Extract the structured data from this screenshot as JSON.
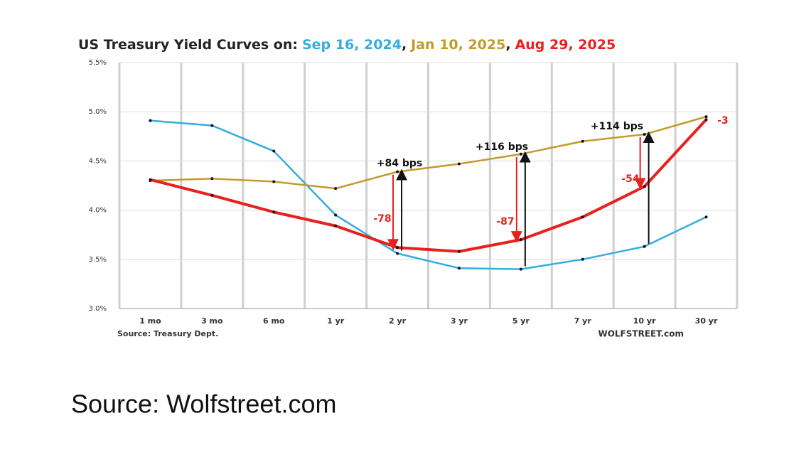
{
  "chart_data": {
    "type": "line",
    "title": "US Treasury Yield Curves on:",
    "title_separators": [
      ",",
      ","
    ],
    "categories": [
      "1 mo",
      "3 mo",
      "6 mo",
      "1 yr",
      "2 yr",
      "3 yr",
      "5 yr",
      "7 yr",
      "10 yr",
      "30 yr"
    ],
    "series": [
      {
        "name": "Sep 16, 2024",
        "color": "#35ace0",
        "values": [
          4.91,
          4.86,
          4.6,
          3.95,
          3.56,
          3.41,
          3.4,
          3.5,
          3.63,
          3.93
        ]
      },
      {
        "name": "Jan 10, 2025",
        "color": "#c49a2c",
        "values": [
          4.3,
          4.32,
          4.29,
          4.22,
          4.39,
          4.47,
          4.57,
          4.7,
          4.77,
          4.95
        ]
      },
      {
        "name": "Aug 29, 2025",
        "color": "#e8201e",
        "values": [
          4.31,
          4.15,
          3.98,
          3.84,
          3.62,
          3.58,
          3.7,
          3.93,
          4.24,
          4.92
        ]
      }
    ],
    "ylim": [
      3.0,
      5.5
    ],
    "yticks": [
      {
        "value": 3.0,
        "label": "3.0%"
      },
      {
        "value": 3.5,
        "label": "3.5%"
      },
      {
        "value": 4.0,
        "label": "4.0%"
      },
      {
        "value": 4.5,
        "label": "4.5%"
      },
      {
        "value": 5.0,
        "label": "5.0%"
      },
      {
        "value": 5.5,
        "label": "5.5%"
      }
    ],
    "grid": true,
    "annotations": [
      "+84 bps",
      "+116 bps",
      "+114 bps",
      "-78",
      "-87",
      "-54",
      "-3"
    ],
    "source_left": "Source: Treasury Dept.",
    "source_right": "WOLFSTREET.com"
  },
  "caption": "Source: Wolfstreet.com"
}
